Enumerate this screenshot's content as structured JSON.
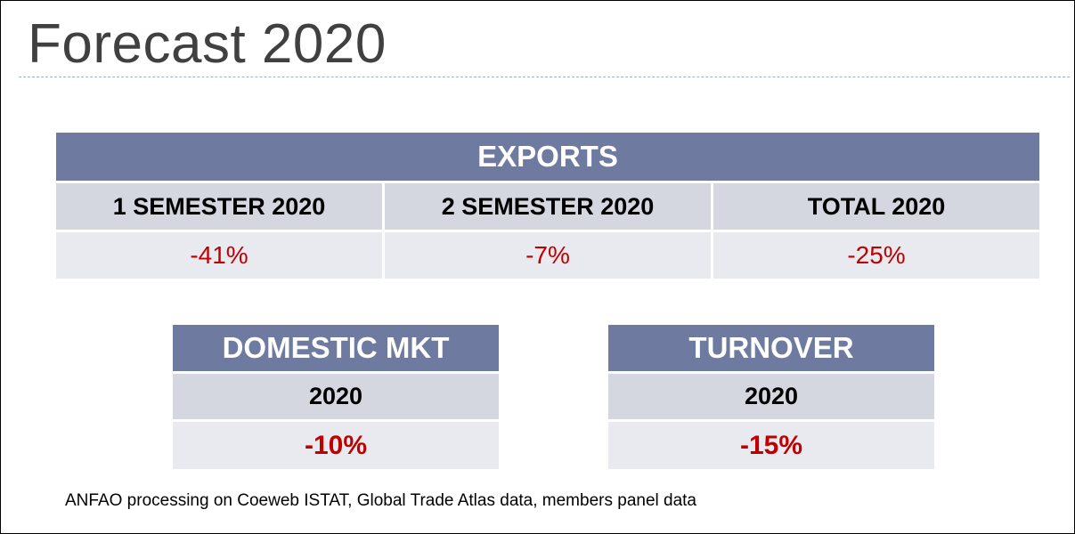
{
  "title": "Forecast 2020",
  "exports": {
    "header": "EXPORTS",
    "columns": [
      "1 SEMESTER 2020",
      "2 SEMESTER 2020",
      "TOTAL 2020"
    ],
    "values": [
      "-41%",
      "-7%",
      "-25%"
    ]
  },
  "domestic": {
    "header": "DOMESTIC MKT",
    "year": "2020",
    "value": "-10%"
  },
  "turnover": {
    "header": "TURNOVER",
    "year": "2020",
    "value": "-15%"
  },
  "source": "ANFAO processing on Coeweb ISTAT, Global Trade Atlas data, members panel data",
  "colors": {
    "header_bg": "#6e7aa0",
    "subheader_bg": "#d4d6e0",
    "value_bg": "#e9eaef",
    "negative_value": "#c00000"
  }
}
